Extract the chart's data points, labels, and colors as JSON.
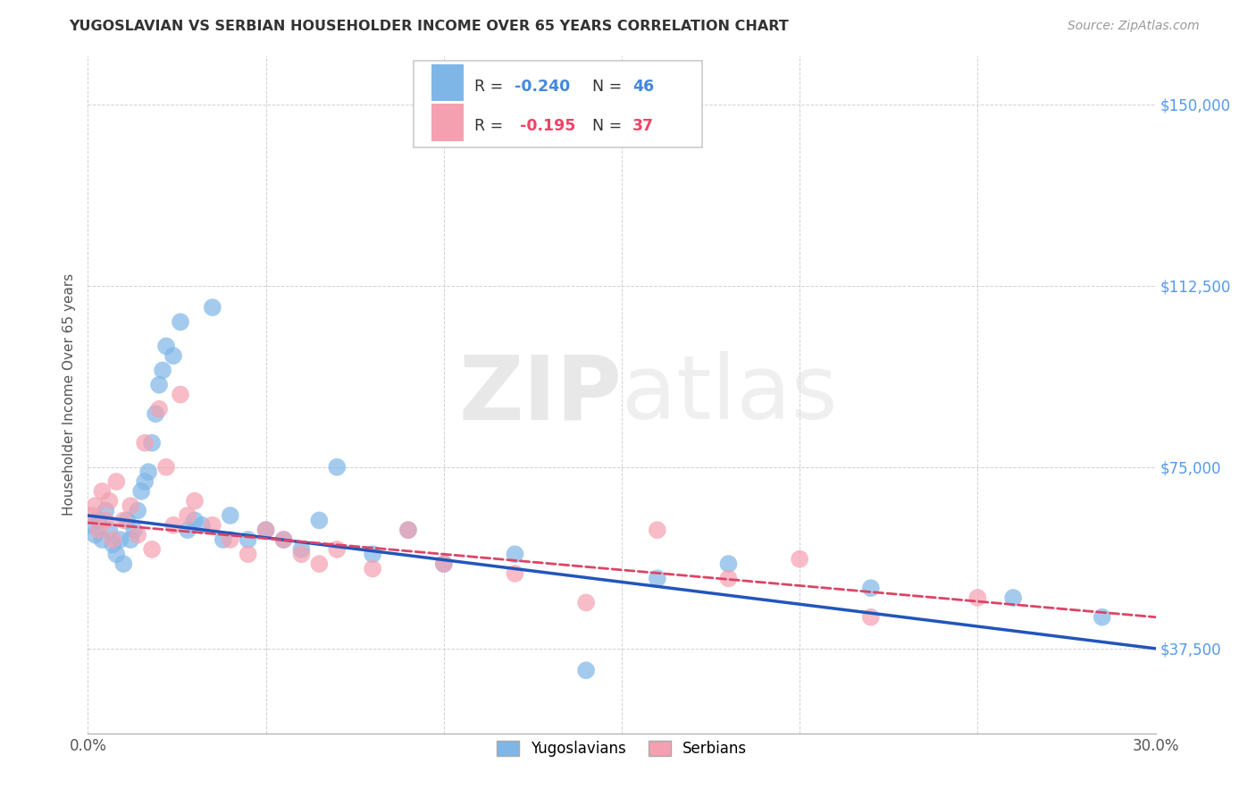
{
  "title": "YUGOSLAVIAN VS SERBIAN HOUSEHOLDER INCOME OVER 65 YEARS CORRELATION CHART",
  "source": "Source: ZipAtlas.com",
  "ylabel": "Householder Income Over 65 years",
  "xlim": [
    0.0,
    0.3
  ],
  "ylim": [
    20000,
    160000
  ],
  "xticks": [
    0.0,
    0.05,
    0.1,
    0.15,
    0.2,
    0.25,
    0.3
  ],
  "xticklabels": [
    "0.0%",
    "",
    "",
    "",
    "",
    "",
    "30.0%"
  ],
  "yticks": [
    37500,
    75000,
    112500,
    150000
  ],
  "yticklabels": [
    "$37,500",
    "$75,000",
    "$112,500",
    "$150,000"
  ],
  "grid_color": "#cccccc",
  "background_color": "#ffffff",
  "yug_color": "#7EB6E8",
  "ser_color": "#F4A0B0",
  "yug_line_color": "#2255BB",
  "ser_line_color": "#DD4466",
  "watermark_zip": "ZIP",
  "watermark_atlas": "atlas",
  "yug_x": [
    0.001,
    0.002,
    0.003,
    0.004,
    0.005,
    0.006,
    0.007,
    0.008,
    0.009,
    0.01,
    0.011,
    0.012,
    0.013,
    0.014,
    0.015,
    0.016,
    0.017,
    0.018,
    0.019,
    0.02,
    0.021,
    0.022,
    0.024,
    0.026,
    0.028,
    0.03,
    0.032,
    0.035,
    0.038,
    0.04,
    0.045,
    0.05,
    0.055,
    0.06,
    0.065,
    0.07,
    0.08,
    0.09,
    0.1,
    0.12,
    0.14,
    0.16,
    0.18,
    0.22,
    0.26,
    0.285
  ],
  "yug_y": [
    63000,
    61000,
    64000,
    60000,
    66000,
    62000,
    59000,
    57000,
    60000,
    55000,
    64000,
    60000,
    62000,
    66000,
    70000,
    72000,
    74000,
    80000,
    86000,
    92000,
    95000,
    100000,
    98000,
    105000,
    62000,
    64000,
    63000,
    108000,
    60000,
    65000,
    60000,
    62000,
    60000,
    58000,
    64000,
    75000,
    57000,
    62000,
    55000,
    57000,
    33000,
    52000,
    55000,
    50000,
    48000,
    44000
  ],
  "ser_x": [
    0.001,
    0.002,
    0.003,
    0.004,
    0.005,
    0.006,
    0.007,
    0.008,
    0.01,
    0.012,
    0.014,
    0.016,
    0.018,
    0.02,
    0.022,
    0.024,
    0.026,
    0.028,
    0.03,
    0.035,
    0.04,
    0.045,
    0.05,
    0.055,
    0.06,
    0.065,
    0.07,
    0.08,
    0.09,
    0.1,
    0.12,
    0.14,
    0.16,
    0.18,
    0.2,
    0.22,
    0.25
  ],
  "ser_y": [
    65000,
    67000,
    62000,
    70000,
    64000,
    68000,
    60000,
    72000,
    64000,
    67000,
    61000,
    80000,
    58000,
    87000,
    75000,
    63000,
    90000,
    65000,
    68000,
    63000,
    60000,
    57000,
    62000,
    60000,
    57000,
    55000,
    58000,
    54000,
    62000,
    55000,
    53000,
    47000,
    62000,
    52000,
    56000,
    44000,
    48000
  ],
  "yug_line_x": [
    0.0,
    0.3
  ],
  "yug_line_y": [
    65000,
    37500
  ],
  "ser_line_x": [
    0.0,
    0.3
  ],
  "ser_line_y": [
    63500,
    44000
  ]
}
